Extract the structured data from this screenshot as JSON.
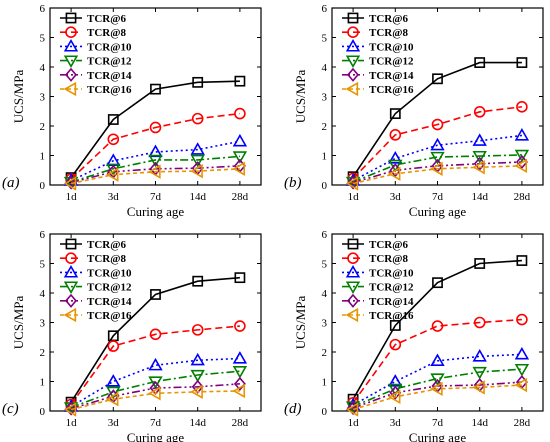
{
  "series_styles": [
    {
      "color": "#000000",
      "marker": "square",
      "dash": ""
    },
    {
      "color": "#ff0000",
      "marker": "circle",
      "dash": "7,4"
    },
    {
      "color": "#0000ff",
      "marker": "triangle-up",
      "dash": "2,3"
    },
    {
      "color": "#008000",
      "marker": "triangle-down",
      "dash": "8,3,2,3"
    },
    {
      "color": "#800080",
      "marker": "diamond",
      "dash": "8,3,2,3,2,3"
    },
    {
      "color": "#e69500",
      "marker": "triangle-left",
      "dash": "4,3"
    }
  ],
  "chart_data": [
    {
      "panel": "(a)",
      "type": "line",
      "xlabel": "Curing age",
      "ylabel": "UCS/MPa",
      "categories": [
        "1d",
        "3d",
        "7d",
        "14d",
        "28d"
      ],
      "ylim": [
        0,
        6
      ],
      "yticks": [
        "0",
        "1",
        "2",
        "3",
        "4",
        "5",
        "6"
      ],
      "legend_position": "top-left",
      "series": [
        {
          "name": "TCR@6",
          "values": [
            0.25,
            2.22,
            3.25,
            3.48,
            3.52
          ]
        },
        {
          "name": "TCR@8",
          "values": [
            0.2,
            1.55,
            1.95,
            2.25,
            2.42
          ]
        },
        {
          "name": "TCR@10",
          "values": [
            0.15,
            0.82,
            1.12,
            1.2,
            1.48
          ]
        },
        {
          "name": "TCR@12",
          "values": [
            0.1,
            0.55,
            0.85,
            0.85,
            0.97
          ]
        },
        {
          "name": "TCR@14",
          "values": [
            0.08,
            0.45,
            0.55,
            0.57,
            0.65
          ]
        },
        {
          "name": "TCR@16",
          "values": [
            0.05,
            0.35,
            0.45,
            0.47,
            0.55
          ]
        }
      ]
    },
    {
      "panel": "(b)",
      "type": "line",
      "xlabel": "Curing age",
      "ylabel": "UCS/MPa",
      "categories": [
        "1d",
        "3d",
        "7d",
        "14d",
        "28d"
      ],
      "ylim": [
        0,
        6
      ],
      "yticks": [
        "0",
        "1",
        "2",
        "3",
        "4",
        "5",
        "6"
      ],
      "legend_position": "top-left",
      "series": [
        {
          "name": "TCR@6",
          "values": [
            0.28,
            2.42,
            3.6,
            4.15,
            4.15
          ]
        },
        {
          "name": "TCR@8",
          "values": [
            0.22,
            1.7,
            2.05,
            2.48,
            2.65
          ]
        },
        {
          "name": "TCR@10",
          "values": [
            0.15,
            0.9,
            1.35,
            1.5,
            1.68
          ]
        },
        {
          "name": "TCR@12",
          "values": [
            0.1,
            0.68,
            0.95,
            0.98,
            1.02
          ]
        },
        {
          "name": "TCR@14",
          "values": [
            0.08,
            0.5,
            0.65,
            0.72,
            0.78
          ]
        },
        {
          "name": "TCR@16",
          "values": [
            0.05,
            0.38,
            0.55,
            0.6,
            0.65
          ]
        }
      ]
    },
    {
      "panel": "(c)",
      "type": "line",
      "xlabel": "Curing age",
      "ylabel": "UCS/MPa",
      "categories": [
        "1d",
        "3d",
        "7d",
        "14d",
        "28d"
      ],
      "ylim": [
        0,
        6
      ],
      "yticks": [
        "0",
        "1",
        "2",
        "3",
        "4",
        "5",
        "6"
      ],
      "legend_position": "top-left",
      "series": [
        {
          "name": "TCR@6",
          "values": [
            0.3,
            2.55,
            3.95,
            4.4,
            4.52
          ]
        },
        {
          "name": "TCR@8",
          "values": [
            0.22,
            2.2,
            2.6,
            2.75,
            2.88
          ]
        },
        {
          "name": "TCR@10",
          "values": [
            0.15,
            1.0,
            1.55,
            1.72,
            1.78
          ]
        },
        {
          "name": "TCR@12",
          "values": [
            0.12,
            0.65,
            1.0,
            1.22,
            1.35
          ]
        },
        {
          "name": "TCR@14",
          "values": [
            0.08,
            0.5,
            0.78,
            0.82,
            0.92
          ]
        },
        {
          "name": "TCR@16",
          "values": [
            0.05,
            0.4,
            0.6,
            0.65,
            0.68
          ]
        }
      ]
    },
    {
      "panel": "(d)",
      "type": "line",
      "xlabel": "Curing age",
      "ylabel": "UCS/MPa",
      "categories": [
        "1d",
        "3d",
        "7d",
        "14d",
        "28d"
      ],
      "ylim": [
        0,
        6
      ],
      "yticks": [
        "0",
        "1",
        "2",
        "3",
        "4",
        "5",
        "6"
      ],
      "legend_position": "top-left",
      "series": [
        {
          "name": "TCR@6",
          "values": [
            0.4,
            2.9,
            4.35,
            5.0,
            5.1
          ]
        },
        {
          "name": "TCR@8",
          "values": [
            0.28,
            2.25,
            2.88,
            3.0,
            3.1
          ]
        },
        {
          "name": "TCR@10",
          "values": [
            0.2,
            1.0,
            1.7,
            1.85,
            1.92
          ]
        },
        {
          "name": "TCR@12",
          "values": [
            0.15,
            0.75,
            1.1,
            1.32,
            1.42
          ]
        },
        {
          "name": "TCR@14",
          "values": [
            0.1,
            0.62,
            0.85,
            0.88,
            0.98
          ]
        },
        {
          "name": "TCR@16",
          "values": [
            0.05,
            0.48,
            0.75,
            0.8,
            0.88
          ]
        }
      ]
    }
  ]
}
